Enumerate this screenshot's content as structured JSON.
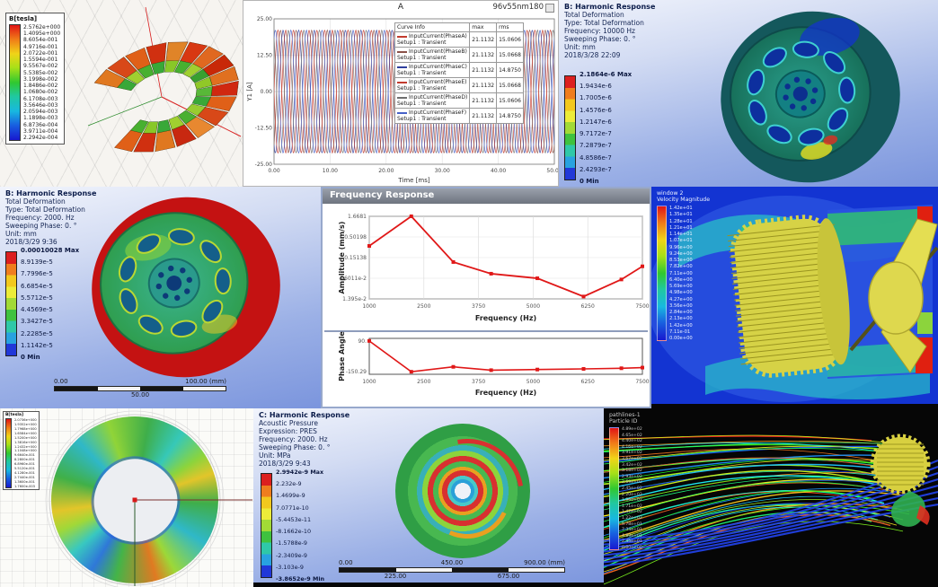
{
  "panels": {
    "torus_field": {
      "legend_title": "B[tesla]",
      "legend_values": [
        "2.5762e+000",
        "1.4095e+000",
        "8.6054e-001",
        "4.9716e-001",
        "2.0722e-001",
        "1.5594e-001",
        "9.5567e-002",
        "5.5385e-002",
        "3.1998e-002",
        "1.8486e-002",
        "1.0680e-002",
        "6.1708e-003",
        "3.5646e-003",
        "2.0594e-003",
        "1.1898e-003",
        "6.8736e-004",
        "3.9711e-004",
        "2.2942e-004"
      ]
    },
    "current_plot": {
      "title": "A",
      "corner_label": "96v55nm180",
      "legend_header": {
        "info": "Curve Info",
        "max": "max",
        "rms": "rms"
      }
    },
    "harmonic_10000": {
      "header": [
        "B: Harmonic Response",
        "Total Deformation",
        "Type: Total Deformation",
        "Frequency: 10000 Hz",
        "Sweeping Phase: 0. °",
        "Unit: mm",
        "2018/3/28 22:09"
      ],
      "legend": [
        "2.1864e-6 Max",
        "1.9434e-6",
        "1.7005e-6",
        "1.4576e-6",
        "1.2147e-6",
        "9.7172e-7",
        "7.2879e-7",
        "4.8586e-7",
        "2.4293e-7",
        "0 Min"
      ]
    },
    "harmonic_2000": {
      "header": [
        "B: Harmonic Response",
        "Total Deformation",
        "Type: Total Deformation",
        "Frequency: 2000. Hz",
        "Sweeping Phase: 0. °",
        "Unit: mm",
        "2018/3/29 9:36"
      ],
      "legend": [
        "0.00010028 Max",
        "8.9139e-5",
        "7.7996e-5",
        "6.6854e-5",
        "5.5712e-5",
        "4.4569e-5",
        "3.3427e-5",
        "2.2285e-5",
        "1.1142e-5",
        "0 Min"
      ],
      "scale_bar": {
        "left": "0.00",
        "mid": "50.00",
        "right": "100.00 (mm)"
      }
    },
    "freq_response": {
      "window_title": "Frequency Response"
    },
    "cfd_velocity": {
      "legend_title": [
        "window 2",
        "Velocity Magnitude"
      ],
      "legend_values": [
        "1.42e+01",
        "1.35e+01",
        "1.28e+01",
        "1.21e+01",
        "1.14e+01",
        "1.07e+01",
        "9.96e+00",
        "9.24e+00",
        "8.53e+00",
        "7.82e+00",
        "7.11e+00",
        "6.40e+00",
        "5.69e+00",
        "4.98e+00",
        "4.27e+00",
        "3.56e+00",
        "2.84e+00",
        "2.13e+00",
        "1.42e+00",
        "7.11e-01",
        "0.00e+00"
      ]
    },
    "rotor_field": {
      "legend_title": "B[tesla]",
      "legend_values": [
        "2.0736e+000",
        "1.9352e+000",
        "1.7968e+000",
        "1.6584e+000",
        "1.5200e+000",
        "1.3816e+000",
        "1.2432e+000",
        "1.1048e+000",
        "9.6640e-001",
        "8.2800e-001",
        "6.8960e-001",
        "5.5120e-001",
        "4.1280e-001",
        "2.7440e-001",
        "1.3600e-001",
        "1.7600e-003"
      ]
    },
    "acoustic": {
      "header": [
        "C: Harmonic Response",
        "Acoustic Pressure",
        "Expression: PRES",
        "Frequency: 2000. Hz",
        "Sweeping Phase: 0. °",
        "Unit: MPa",
        "2018/3/29 9:43"
      ],
      "legend": [
        "2.9942e-9 Max",
        "2.232e-9",
        "1.4699e-9",
        "7.0771e-10",
        "-5.4453e-11",
        "-8.1662e-10",
        "-1.5788e-9",
        "-2.3409e-9",
        "-3.103e-9",
        "-3.8652e-9 Min"
      ],
      "scale_bar": [
        "0.00",
        "225.00",
        "450.00",
        "675.00",
        "900.00 (mm)"
      ]
    },
    "pathlines": {
      "legend_title": [
        "pathlines-1",
        "Particle ID"
      ],
      "legend_values": [
        "4.89e+02",
        "4.65e+02",
        "4.40e+02",
        "4.16e+02",
        "3.91e+02",
        "3.67e+02",
        "3.42e+02",
        "3.18e+02",
        "2.93e+02",
        "2.69e+02",
        "2.45e+02",
        "2.20e+02",
        "1.96e+02",
        "1.71e+02",
        "1.47e+02",
        "1.22e+02",
        "9.78e+01",
        "7.34e+01",
        "4.89e+01",
        "2.45e+01",
        "0.00e+00"
      ]
    }
  },
  "chart_data": [
    {
      "type": "line",
      "title": "A",
      "subtitle": "96v55nm180",
      "xlabel": "Time [ms]",
      "ylabel": "Y1 [A]",
      "xlim": [
        0,
        50
      ],
      "ylim": [
        -25,
        25
      ],
      "x_ticks": [
        "0.00",
        "10.00",
        "20.00",
        "30.00",
        "40.00",
        "50.00"
      ],
      "y_ticks": [
        "25.00",
        "12.50",
        "0.00",
        "-12.50",
        "-25.00"
      ],
      "amplitude": 21.1132,
      "cycles": 18,
      "grid": true,
      "legend_position": "right",
      "series": [
        {
          "name": "InputCurrent(PhaseA)",
          "setup": "Setup1 : Transient",
          "max": "21.1132",
          "rms": "15.0606",
          "color": "#c23b2e",
          "phase_deg": 0
        },
        {
          "name": "InputCurrent(PhaseB)",
          "setup": "Setup1 : Transient",
          "max": "21.1132",
          "rms": "15.0668",
          "color": "#8a5148",
          "phase_deg": -60
        },
        {
          "name": "InputCurrent(PhaseC)",
          "setup": "Setup1 : Transient",
          "max": "21.1132",
          "rms": "14.8750",
          "color": "#2f3f9e",
          "phase_deg": -120
        },
        {
          "name": "InputCurrent(PhaseE)",
          "setup": "Setup1 : Transient",
          "max": "21.1132",
          "rms": "15.0668",
          "color": "#c23b2e",
          "phase_deg": -180
        },
        {
          "name": "InputCurrent(PhaseD)",
          "setup": "Setup1 : Transient",
          "max": "21.1132",
          "rms": "15.0606",
          "color": "#6f6f6f",
          "phase_deg": -240
        },
        {
          "name": "InputCurrent(PhaseF)",
          "setup": "Setup1 : Transient",
          "max": "21.1132",
          "rms": "14.8750",
          "color": "#4661c8",
          "phase_deg": -300
        }
      ]
    },
    {
      "type": "line",
      "title": "Frequency Response",
      "xlabel": "Frequency (Hz)",
      "ylabel": "Amplitude (mm/s)",
      "y_scale": "log",
      "grid": true,
      "x_ticks": [
        "1000",
        "2500",
        "3750",
        "5000",
        "6250",
        "7500"
      ],
      "y_ticks": [
        "1.6681",
        "0.50198",
        "0.15138",
        "4.6011e-2",
        "1.395e-2"
      ],
      "x": [
        1000,
        2000,
        3000,
        3900,
        5000,
        6100,
        7000,
        7500
      ],
      "y": [
        0.3,
        1.6681,
        0.118,
        0.06,
        0.046,
        0.016,
        0.043,
        0.092
      ],
      "line_color": "#e01818"
    },
    {
      "type": "line",
      "xlabel": "Frequency (Hz)",
      "ylabel": "Phase Angle",
      "ylim": [
        -170,
        110
      ],
      "grid": false,
      "x_ticks": [
        "1000",
        "2500",
        "3750",
        "5000",
        "6250",
        "7500"
      ],
      "y_ticks": [
        "90.",
        "-150.29"
      ],
      "x": [
        1000,
        2000,
        3000,
        3900,
        5000,
        6100,
        7000,
        7500
      ],
      "y": [
        90,
        -150.29,
        -112,
        -138,
        -133,
        -128,
        -123,
        -118
      ],
      "line_color": "#e01818"
    }
  ]
}
